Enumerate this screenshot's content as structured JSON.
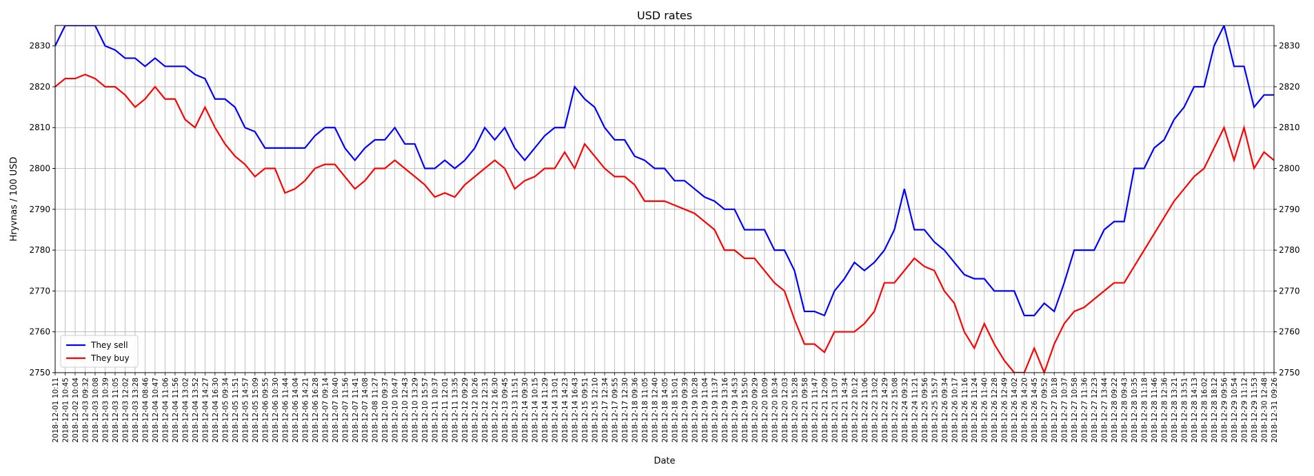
{
  "chart_data": {
    "type": "line",
    "title": "USD rates",
    "xlabel": "Date",
    "ylabel": "Hryvnas / 100 USD",
    "categories": [
      "2018-12-01 10:11",
      "2018-12-01 10:45",
      "2018-12-02 10:04",
      "2018-12-03 09:32",
      "2018-12-03 10:08",
      "2018-12-03 10:39",
      "2018-12-03 11:05",
      "2018-12-03 12:02",
      "2018-12-03 13:28",
      "2018-12-04 08:46",
      "2018-12-04 10:47",
      "2018-12-04 11:06",
      "2018-12-04 11:56",
      "2018-12-04 13:02",
      "2018-12-04 13:52",
      "2018-12-04 14:27",
      "2018-12-04 16:30",
      "2018-12-05 09:34",
      "2018-12-05 11:51",
      "2018-12-05 14:57",
      "2018-12-05 15:09",
      "2018-12-06 09:55",
      "2018-12-06 10:30",
      "2018-12-06 11:44",
      "2018-12-06 14:04",
      "2018-12-06 14:21",
      "2018-12-06 16:28",
      "2018-12-07 09:14",
      "2018-12-07 10:40",
      "2018-12-07 11:56",
      "2018-12-07 11:41",
      "2018-12-07 14:08",
      "2018-12-08 11:27",
      "2018-12-10 09:37",
      "2018-12-10 10:47",
      "2018-12-10 12:43",
      "2018-12-10 13:29",
      "2018-12-10 15:57",
      "2018-12-11 10:37",
      "2018-12-11 12:01",
      "2018-12-11 13:35",
      "2018-12-12 09:29",
      "2018-12-12 10:26",
      "2018-12-12 12:31",
      "2018-12-12 16:30",
      "2018-12-13 09:45",
      "2018-12-13 11:51",
      "2018-12-14 09:30",
      "2018-12-14 10:15",
      "2018-12-14 11:29",
      "2018-12-14 13:01",
      "2018-12-14 14:23",
      "2018-12-14 16:43",
      "2018-12-15 09:51",
      "2018-12-15 12:10",
      "2018-12-17 12:34",
      "2018-12-17 09:55",
      "2018-12-17 12:30",
      "2018-12-18 09:36",
      "2018-12-18 11:05",
      "2018-12-18 12:40",
      "2018-12-18 14:05",
      "2018-12-18 15:01",
      "2018-12-19 09:39",
      "2018-12-19 10:28",
      "2018-12-19 11:04",
      "2018-12-19 11:37",
      "2018-12-19 13:16",
      "2018-12-19 14:53",
      "2018-12-19 15:50",
      "2018-12-20 09:29",
      "2018-12-20 10:09",
      "2018-12-20 10:34",
      "2018-12-20 12:03",
      "2018-12-20 15:28",
      "2018-12-21 09:58",
      "2018-12-21 11:47",
      "2018-12-21 12:09",
      "2018-12-21 13:07",
      "2018-12-21 14:34",
      "2018-12-22 10:12",
      "2018-12-22 11:06",
      "2018-12-22 13:02",
      "2018-12-22 14:29",
      "2018-12-22 15:08",
      "2018-12-24 09:32",
      "2018-12-24 11:21",
      "2018-12-25 09:56",
      "2018-12-25 15:57",
      "2018-12-26 09:34",
      "2018-12-26 10:17",
      "2018-12-26 11:16",
      "2018-12-26 11:24",
      "2018-12-26 11:40",
      "2018-12-26 12:28",
      "2018-12-26 12:49",
      "2018-12-26 14:02",
      "2018-12-26 14:20",
      "2018-12-26 14:45",
      "2018-12-27 09:52",
      "2018-12-27 10:18",
      "2018-12-27 10:37",
      "2018-12-27 10:58",
      "2018-12-27 11:36",
      "2018-12-27 12:23",
      "2018-12-27 13:44",
      "2018-12-28 09:22",
      "2018-12-28 09:43",
      "2018-12-28 10:35",
      "2018-12-28 11:18",
      "2018-12-28 11:46",
      "2018-12-28 12:36",
      "2018-12-28 13:21",
      "2018-12-28 13:51",
      "2018-12-28 14:13",
      "2018-12-28 16:02",
      "2018-12-28 18:12",
      "2018-12-29 09:56",
      "2018-12-29 10:54",
      "2018-12-29 11:12",
      "2018-12-29 11:53",
      "2018-12-30 12:48",
      "2018-12-31 09:26"
    ],
    "series": [
      {
        "name": "They sell",
        "color": "#0000ff",
        "values": [
          2830,
          2835,
          2835,
          2835,
          2835,
          2830,
          2829,
          2827,
          2827,
          2825,
          2827,
          2825,
          2825,
          2825,
          2823,
          2822,
          2817,
          2817,
          2815,
          2810,
          2809,
          2805,
          2805,
          2805,
          2805,
          2805,
          2808,
          2810,
          2810,
          2805,
          2802,
          2805,
          2807,
          2807,
          2810,
          2806,
          2806,
          2800,
          2800,
          2802,
          2800,
          2802,
          2805,
          2810,
          2807,
          2810,
          2805,
          2802,
          2805,
          2808,
          2810,
          2810,
          2820,
          2817,
          2815,
          2810,
          2807,
          2807,
          2803,
          2802,
          2800,
          2800,
          2797,
          2797,
          2795,
          2793,
          2792,
          2790,
          2790,
          2785,
          2785,
          2785,
          2780,
          2780,
          2775,
          2765,
          2765,
          2764,
          2770,
          2773,
          2777,
          2775,
          2777,
          2780,
          2785,
          2795,
          2785,
          2785,
          2782,
          2780,
          2777,
          2774,
          2773,
          2773,
          2770,
          2770,
          2770,
          2764,
          2764,
          2767,
          2765,
          2772,
          2780,
          2780,
          2780,
          2785,
          2787,
          2787,
          2800,
          2800,
          2805,
          2807,
          2812,
          2815,
          2820,
          2820,
          2830,
          2835,
          2825,
          2825,
          2815,
          2818,
          2818
        ]
      },
      {
        "name": "They buy",
        "color": "#ff0000",
        "values": [
          2820,
          2822,
          2822,
          2823,
          2822,
          2820,
          2820,
          2818,
          2815,
          2817,
          2820,
          2817,
          2817,
          2812,
          2810,
          2815,
          2810,
          2806,
          2803,
          2801,
          2798,
          2800,
          2800,
          2794,
          2795,
          2797,
          2800,
          2801,
          2801,
          2798,
          2795,
          2797,
          2800,
          2800,
          2802,
          2800,
          2798,
          2796,
          2793,
          2794,
          2793,
          2796,
          2798,
          2800,
          2802,
          2800,
          2795,
          2797,
          2798,
          2800,
          2800,
          2804,
          2800,
          2806,
          2803,
          2800,
          2798,
          2798,
          2796,
          2792,
          2792,
          2792,
          2791,
          2790,
          2789,
          2787,
          2785,
          2780,
          2780,
          2778,
          2778,
          2775,
          2772,
          2770,
          2763,
          2757,
          2757,
          2755,
          2760,
          2760,
          2760,
          2762,
          2765,
          2772,
          2772,
          2775,
          2778,
          2776,
          2775,
          2770,
          2767,
          2760,
          2756,
          2762,
          2757,
          2753,
          2750,
          2750,
          2756,
          2750,
          2757,
          2762,
          2765,
          2766,
          2768,
          2770,
          2772,
          2772,
          2776,
          2780,
          2784,
          2788,
          2792,
          2795,
          2798,
          2800,
          2805,
          2810,
          2802,
          2810,
          2800,
          2804,
          2802
        ]
      }
    ],
    "ylim": [
      2750,
      2835
    ],
    "yticks": [
      2750,
      2760,
      2770,
      2780,
      2790,
      2800,
      2810,
      2820,
      2830
    ],
    "y2lim": [
      2750,
      2835
    ],
    "y2ticks": [
      2750,
      2760,
      2770,
      2780,
      2790,
      2800,
      2810,
      2820,
      2830
    ],
    "grid": true,
    "legend": "lower left"
  }
}
